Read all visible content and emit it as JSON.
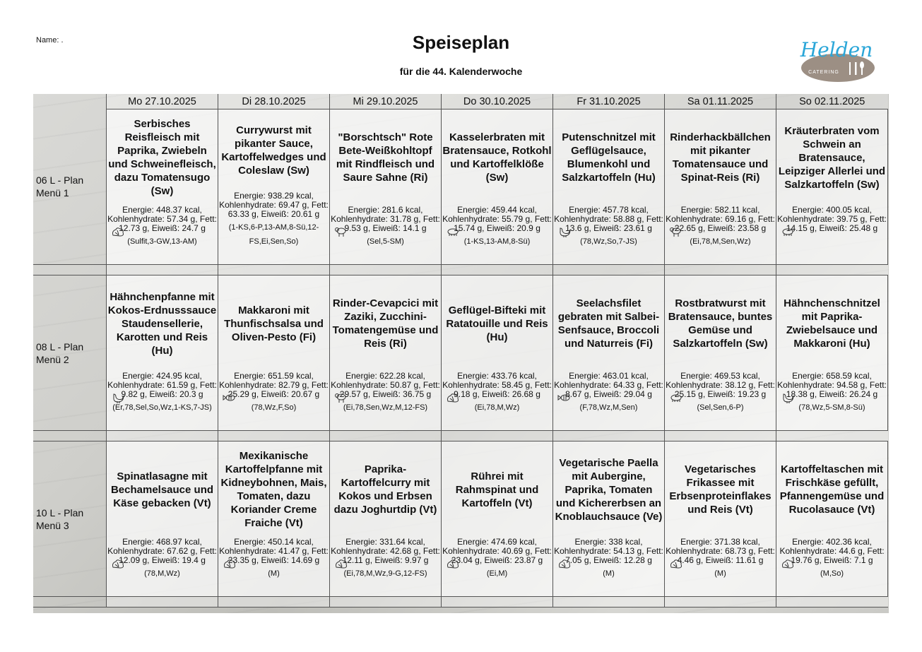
{
  "header": {
    "name_label": "Name: .",
    "title": "Speiseplan",
    "subtitle": "für die 44. Kalenderwoche",
    "logo_text": "Helden",
    "logo_subtext": "CATERING",
    "logo_colors": {
      "script": "#2aa6d8",
      "badge": "#9c8f84"
    }
  },
  "days": [
    "Mo 27.10.2025",
    "Di 28.10.2025",
    "Mi 29.10.2025",
    "Do 30.10.2025",
    "Fr 31.10.2025",
    "Sa 01.11.2025",
    "So 02.11.2025"
  ],
  "menus": [
    {
      "label": "06 L - Plan Menü 1",
      "cells": [
        {
          "title": "Serbisches Reisfleisch mit Paprika, Zwiebeln und Schweinefleisch, dazu Tomatensugo (Sw)",
          "nutrition": "Energie: 448.37 kcal, Kohlenhydrate: 57.34 g, Fett: 12.73 g, Eiweiß: 24.7 g",
          "icon": "vegetable-icon",
          "allergens": "(Sulfit,3-GW,13-AM)"
        },
        {
          "title": "Currywurst mit pikanter Sauce, Kartoffelwedges und Coleslaw (Sw)",
          "nutrition": "Energie: 938.29 kcal, Kohlenhydrate: 69.47 g, Fett: 63.33 g, Eiweiß: 20.61 g",
          "icon": "",
          "allergens": "(1-KS,6-P,13-AM,8-Sü,12-FS,Ei,Sen,So)"
        },
        {
          "title": "\"Borschtsch\" Rote Bete-Weißkohltopf mit Rindfleisch und Saure Sahne (Ri)",
          "nutrition": "Energie: 281.6 kcal, Kohlenhydrate: 31.78 g, Fett: 9.53 g, Eiweiß: 14.1 g",
          "icon": "sheep-icon",
          "allergens": "(Sel,5-SM)"
        },
        {
          "title": "Kasselerbraten mit Bratensauce, Rotkohl und Kartoffelklöße (Sw)",
          "nutrition": "Energie: 459.44 kcal, Kohlenhydrate: 55.79 g, Fett: 15.74 g, Eiweiß: 20.9 g",
          "icon": "pig-icon",
          "allergens": "(1-KS,13-AM,8-Sü)"
        },
        {
          "title": "Putenschnitzel mit Geflügelsauce, Blumenkohl und Salzkartoffeln (Hu)",
          "nutrition": "Energie: 457.78 kcal, Kohlenhydrate: 58.88 g, Fett: 13.6 g, Eiweiß: 23.61 g",
          "icon": "chicken-icon",
          "allergens": "(78,Wz,So,7-JS)"
        },
        {
          "title": "Rinderhackbällchen mit pikanter Tomatensauce und Spinat-Reis (Ri)",
          "nutrition": "Energie: 582.11 kcal, Kohlenhydrate: 69.16 g, Fett: 22.65 g, Eiweiß: 23.58 g",
          "icon": "sheep-icon",
          "allergens": "(Ei,78,M,Sen,Wz)"
        },
        {
          "title": "Kräuterbraten vom Schwein an Bratensauce, Leipziger Allerlei und Salzkartoffeln (Sw)",
          "nutrition": "Energie: 400.05 kcal, Kohlenhydrate: 39.75 g, Fett: 14.15 g, Eiweiß: 25.48 g",
          "icon": "pig-icon",
          "allergens": ""
        }
      ]
    },
    {
      "label": "08 L - Plan Menü 2",
      "cells": [
        {
          "title": "Hähnchenpfanne mit Kokos-Erdnusssauce Staudensellerie, Karotten und Reis (Hu)",
          "nutrition": "Energie: 424.95 kcal, Kohlenhydrate: 61.59 g, Fett: 9.82 g, Eiweiß: 20.3 g",
          "icon": "chicken-icon",
          "allergens": "(Er,78,Sel,So,Wz,1-KS,7-JS)"
        },
        {
          "title": "Makkaroni mit Thunfischsalsa und Oliven-Pesto (Fi)",
          "nutrition": "Energie: 651.59 kcal, Kohlenhydrate: 82.79 g, Fett: 25.29 g, Eiweiß: 20.67 g",
          "icon": "fish-icon",
          "allergens": "(78,Wz,F,So)"
        },
        {
          "title": "Rinder-Cevapcici mit Zaziki, Zucchini-Tomatengemüse und Reis (Ri)",
          "nutrition": "Energie: 622.28 kcal, Kohlenhydrate: 50.87 g, Fett: 29.57 g, Eiweiß: 36.75 g",
          "icon": "sheep-icon",
          "allergens": "(Ei,78,Sen,Wz,M,12-FS)"
        },
        {
          "title": "Geflügel-Bifteki mit Ratatouille und Reis (Hu)",
          "nutrition": "Energie: 433.76 kcal, Kohlenhydrate: 58.45 g, Fett: 9.18 g, Eiweiß: 26.68 g",
          "icon": "vegetable-icon",
          "allergens": "(Ei,78,M,Wz)"
        },
        {
          "title": "Seelachsfilet gebraten mit Salbei-Senfsauce, Broccoli und Naturreis (Fi)",
          "nutrition": "Energie: 463.01 kcal, Kohlenhydrate: 64.33 g, Fett: 8.67 g, Eiweiß: 29.04 g",
          "icon": "fish-icon",
          "allergens": "(F,78,Wz,M,Sen)"
        },
        {
          "title": "Rostbratwurst mit Bratensauce, buntes Gemüse und Salzkartoffeln (Sw)",
          "nutrition": "Energie: 469.53 kcal, Kohlenhydrate: 38.12 g, Fett: 25.15 g, Eiweiß: 19.23 g",
          "icon": "pig-icon",
          "allergens": "(Sel,Sen,6-P)"
        },
        {
          "title": "Hähnchenschnitzel mit Paprika-Zwiebelsauce und Makkaroni (Hu)",
          "nutrition": "Energie: 658.59 kcal, Kohlenhydrate: 94.58 g, Fett: 18.38 g, Eiweiß: 26.24 g",
          "icon": "chicken-icon",
          "allergens": "(78,Wz,5-SM,8-Sü)"
        }
      ]
    },
    {
      "label": "10 L - Plan Menü 3",
      "cells": [
        {
          "title": "Spinatlasagne mit Bechamelsauce und Käse gebacken (Vt)",
          "nutrition": "Energie: 468.97 kcal, Kohlenhydrate: 67.62 g, Fett: 12.09 g, Eiweiß: 19.4 g",
          "icon": "vegetable-icon",
          "allergens": "(78,M,Wz)"
        },
        {
          "title": "Mexikanische Kartoffelpfanne mit Kidneybohnen, Mais, Tomaten, dazu Koriander Creme Fraiche (Vt)",
          "nutrition": "Energie: 450.14 kcal, Kohlenhydrate: 41.47 g, Fett: 23.35 g, Eiweiß: 14.69 g",
          "icon": "vegetable-icon",
          "allergens": "(M)"
        },
        {
          "title": "Paprika-Kartoffelcurry mit Kokos und Erbsen dazu Joghurtdip (Vt)",
          "nutrition": "Energie: 331.64 kcal, Kohlenhydrate: 42.68 g, Fett: 12.11 g, Eiweiß: 9.97 g",
          "icon": "vegetable-icon",
          "allergens": "(Ei,78,M,Wz,9-G,12-FS)"
        },
        {
          "title": "Rührei mit Rahmspinat und Kartoffeln (Vt)",
          "nutrition": "Energie: 474.69 kcal, Kohlenhydrate: 40.69 g, Fett: 23.04 g, Eiweiß: 23.87 g",
          "icon": "vegetable-icon",
          "allergens": "(Ei,M)"
        },
        {
          "title": "Vegetarische Paella mit Aubergine, Paprika, Tomaten und Kichererbsen an Knoblauchsauce (Ve)",
          "nutrition": "Energie: 338 kcal, Kohlenhydrate: 54.13 g, Fett: 7.05 g, Eiweiß: 12.28 g",
          "icon": "vegetable-icon",
          "allergens": "(M)"
        },
        {
          "title": "Vegetarisches Frikassee mit Erbsenproteinflakes und Reis (Vt)",
          "nutrition": "Energie: 371.38 kcal, Kohlenhydrate: 68.73 g, Fett: 4.46 g, Eiweiß: 11.61 g",
          "icon": "vegetable-icon",
          "allergens": "(M)"
        },
        {
          "title": "Kartoffeltaschen mit Frischkäse gefüllt, Pfannengemüse und Rucolasauce (Vt)",
          "nutrition": "Energie: 402.36 kcal, Kohlenhydrate: 44.6 g, Fett: 19.76 g, Eiweiß: 7.1 g",
          "icon": "vegetable-icon",
          "allergens": "(M,So)"
        }
      ]
    }
  ]
}
